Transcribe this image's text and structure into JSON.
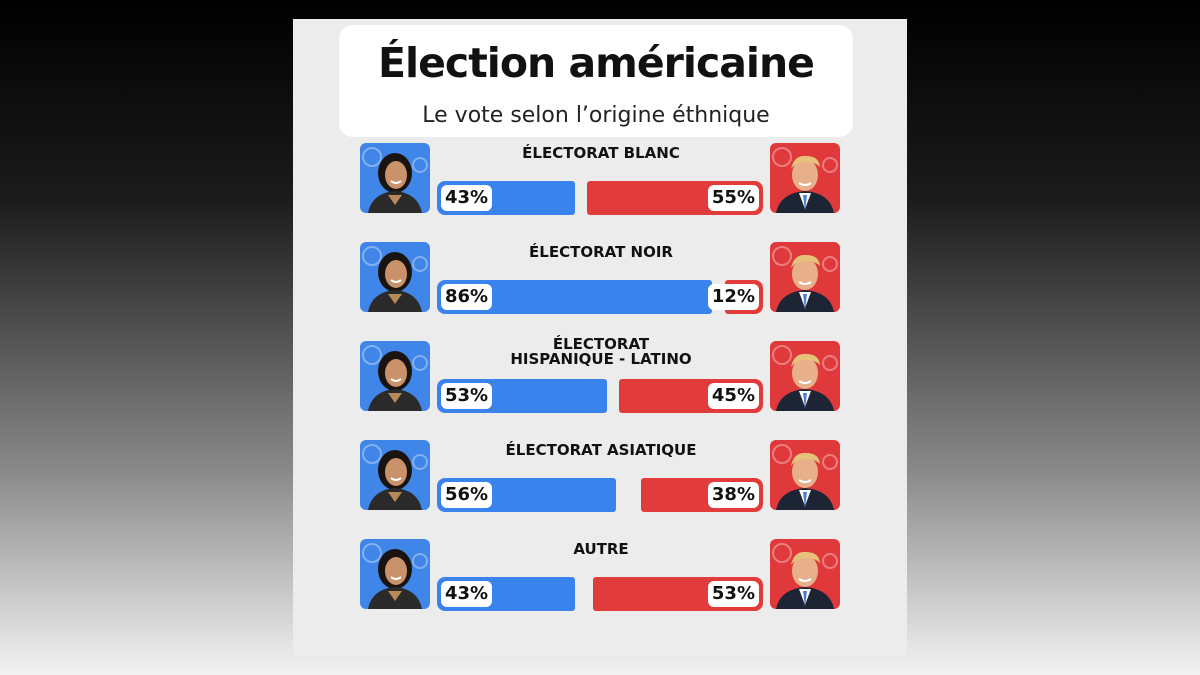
{
  "header": {
    "title": "Élection américaine",
    "subtitle": "Le vote selon l’origine éthnique"
  },
  "colors": {
    "harris": "#3a82ec",
    "trump": "#e23b3b",
    "harris_photo_bg": "#3f86e8",
    "trump_photo_bg": "#e0393b"
  },
  "icons": {
    "left": "kamala-harris-photo",
    "right": "donald-trump-photo"
  },
  "chart_data": {
    "type": "bar",
    "orientation": "horizontal",
    "stacked": true,
    "categories": [
      "ÉLECTORAT BLANC",
      "ÉLECTORAT NOIR",
      "ÉLECTORAT HISPANIQUE - LATINO",
      "ÉLECTORAT ASIATIQUE",
      "AUTRE"
    ],
    "category_lines": [
      [
        "ÉLECTORAT BLANC"
      ],
      [
        "ÉLECTORAT NOIR"
      ],
      [
        "ÉLECTORAT",
        "HISPANIQUE - LATINO"
      ],
      [
        "ÉLECTORAT ASIATIQUE"
      ],
      [
        "AUTRE"
      ]
    ],
    "series": [
      {
        "values": [
          43,
          86,
          53,
          56,
          43
        ],
        "labels": [
          "43%",
          "86%",
          "53%",
          "56%",
          "43%"
        ],
        "color": "#3a82ec"
      },
      {
        "values": [
          55,
          12,
          45,
          38,
          53
        ],
        "labels": [
          "55%",
          "12%",
          "45%",
          "38%",
          "53%"
        ],
        "color": "#e23b3b"
      }
    ],
    "unit": "%",
    "xlim": [
      0,
      100
    ]
  }
}
